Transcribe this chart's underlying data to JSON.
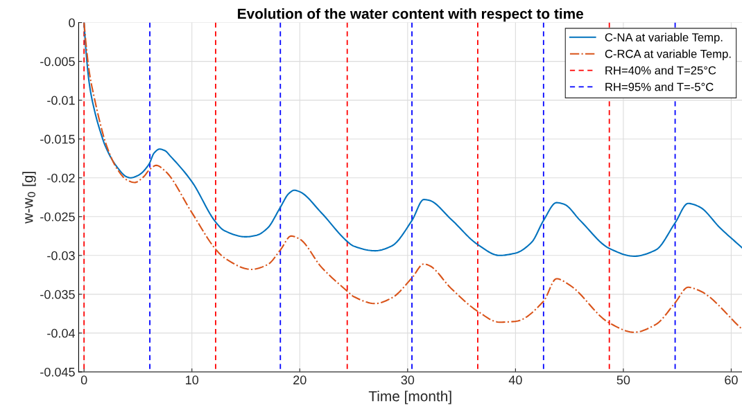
{
  "chart_data": {
    "type": "line",
    "title": "Evolution of the water content with respect to time",
    "xlabel": "Time [month]",
    "ylabel": "w-w$_{0}$ [g]",
    "xlim": [
      -0.5,
      61
    ],
    "ylim": [
      -0.045,
      0
    ],
    "xticks": [
      0,
      10,
      20,
      30,
      40,
      50,
      60
    ],
    "yticks": [
      0,
      -0.005,
      -0.01,
      -0.015,
      -0.02,
      -0.025,
      -0.03,
      -0.035,
      -0.04,
      -0.045
    ],
    "grid": true,
    "legend": "top right",
    "series": [
      {
        "name": "C-NA at variable Temp.",
        "color": "#0072bd",
        "line_style": "solid",
        "x": [
          0,
          0.2,
          0.5,
          1,
          1.5,
          2,
          3,
          4,
          4.3,
          5,
          6,
          6.5,
          7,
          7.5,
          8,
          10,
          12.2,
          13,
          15,
          16,
          17,
          18.2,
          19,
          19.5,
          20,
          22,
          24.4,
          25,
          27,
          28.5,
          30.4,
          31.5,
          32,
          34,
          36.5,
          38.5,
          40,
          41.5,
          42.6,
          43.8,
          44.5,
          46,
          48.7,
          51,
          53,
          54.8,
          56,
          57,
          59,
          61
        ],
        "values": [
          0,
          -0.004,
          -0.008,
          -0.0115,
          -0.014,
          -0.016,
          -0.0185,
          -0.0199,
          -0.02,
          -0.0197,
          -0.0183,
          -0.0168,
          -0.0163,
          -0.0165,
          -0.0172,
          -0.0205,
          -0.0257,
          -0.0268,
          -0.0276,
          -0.0274,
          -0.0265,
          -0.0238,
          -0.022,
          -0.0216,
          -0.0218,
          -0.0245,
          -0.0282,
          -0.0288,
          -0.0294,
          -0.0288,
          -0.0255,
          -0.0228,
          -0.0229,
          -0.0253,
          -0.0286,
          -0.03,
          -0.0297,
          -0.0283,
          -0.0255,
          -0.0232,
          -0.0234,
          -0.0255,
          -0.0291,
          -0.0301,
          -0.0293,
          -0.0258,
          -0.0233,
          -0.0237,
          -0.0265,
          -0.029
        ]
      },
      {
        "name": "C-RCA at variable Temp.",
        "color": "#d95319",
        "line_style": "dashdot",
        "x": [
          0,
          0.2,
          0.5,
          1,
          1.5,
          2,
          3,
          4,
          4.7,
          5.5,
          6.1,
          6.7,
          7.5,
          10,
          12.2,
          13,
          15.5,
          17,
          18.2,
          19.2,
          20,
          22,
          24.4,
          25,
          27,
          28.5,
          30.4,
          31.5,
          32,
          34,
          36.5,
          38.5,
          40,
          42.6,
          43.8,
          45,
          48.7,
          51,
          53,
          54.8,
          56,
          57,
          61
        ],
        "values": [
          0,
          -0.003,
          -0.0065,
          -0.01,
          -0.013,
          -0.0155,
          -0.0187,
          -0.0203,
          -0.0206,
          -0.0199,
          -0.0189,
          -0.0184,
          -0.0191,
          -0.0245,
          -0.0292,
          -0.0303,
          -0.0318,
          -0.0312,
          -0.0293,
          -0.0275,
          -0.0279,
          -0.0315,
          -0.0346,
          -0.0353,
          -0.0362,
          -0.0355,
          -0.0329,
          -0.0311,
          -0.0313,
          -0.0342,
          -0.0372,
          -0.0386,
          -0.0385,
          -0.0359,
          -0.033,
          -0.0338,
          -0.0387,
          -0.0399,
          -0.0389,
          -0.0361,
          -0.0341,
          -0.0345,
          -0.0395
        ]
      },
      {
        "name": "RH=40% and T=25°C",
        "color": "#ff0000",
        "line_style": "dashed",
        "x": [
          0,
          0,
          null,
          12.2,
          12.2,
          null,
          24.4,
          24.4,
          null,
          36.5,
          36.5,
          null,
          48.7,
          48.7
        ],
        "values": [
          0,
          -0.045,
          null,
          0,
          -0.045,
          null,
          0,
          -0.045,
          null,
          0,
          -0.045,
          null,
          0,
          -0.045
        ]
      },
      {
        "name": "RH=95% and T=-5°C",
        "color": "#0000ff",
        "line_style": "dashed",
        "x": [
          6.1,
          6.1,
          null,
          18.2,
          18.2,
          null,
          30.4,
          30.4,
          null,
          42.6,
          42.6,
          null,
          54.8,
          54.8
        ],
        "values": [
          0,
          -0.045,
          null,
          0,
          -0.045,
          null,
          0,
          -0.045,
          null,
          0,
          -0.045,
          null,
          0,
          -0.045
        ]
      }
    ]
  }
}
